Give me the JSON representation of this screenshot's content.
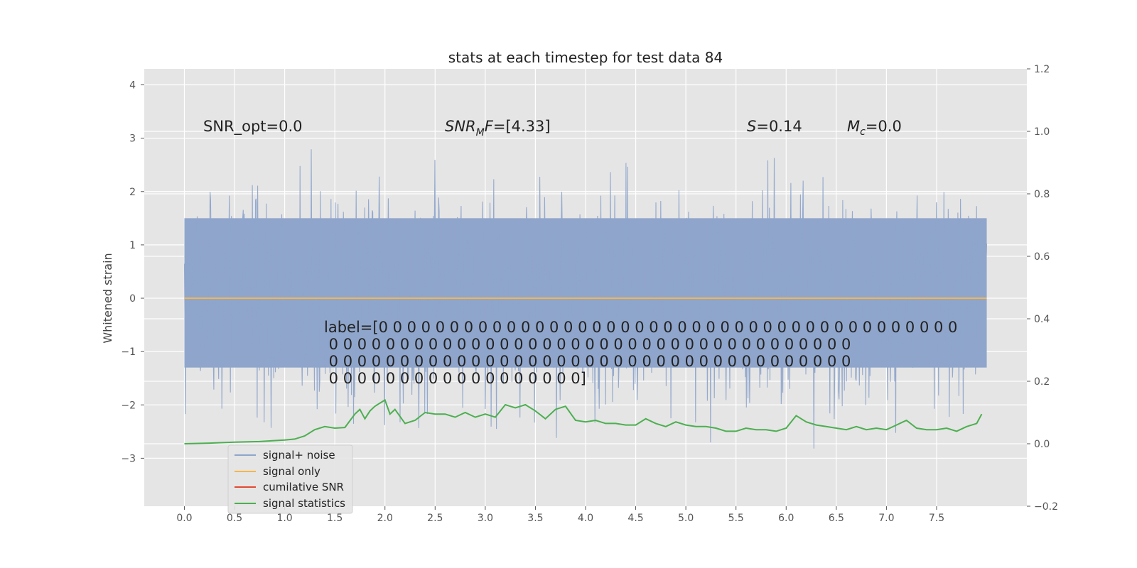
{
  "chart_data": {
    "type": "line",
    "title": "stats at each timestep for test data 84",
    "ylabel": "Whitened strain",
    "xlabel": "",
    "xlim": [
      -0.4,
      8.4
    ],
    "ylim": [
      -3.9,
      4.3
    ],
    "y2lim": [
      -0.2,
      1.2
    ],
    "x_ticks": [
      "0.0",
      "0.5",
      "1.0",
      "1.5",
      "2.0",
      "2.5",
      "3.0",
      "3.5",
      "4.0",
      "4.5",
      "5.0",
      "5.5",
      "6.0",
      "6.5",
      "7.0",
      "7.5"
    ],
    "y_ticks": [
      "4",
      "3",
      "2",
      "1",
      "0",
      "−1",
      "−2",
      "−3"
    ],
    "y2_ticks": [
      "1.2",
      "1.0",
      "0.8",
      "0.6",
      "0.4",
      "0.2",
      "0.0",
      "−0.2"
    ],
    "grid": true,
    "legend_placement": "lower-left",
    "series": [
      {
        "name": "signal+ noise",
        "color": "#8fa5cb",
        "axis": "left",
        "description_values": "dense noise between roughly -3.5 and 4.0 over x 0.0 to 8.0",
        "x_range": [
          0.0,
          8.0
        ],
        "envelope_upper": 3.4,
        "envelope_lower": -3.2,
        "core_band": [
          -1.3,
          1.5
        ]
      },
      {
        "name": "signal only",
        "color": "#f5b54a",
        "axis": "left",
        "x": [
          0.0,
          8.0
        ],
        "values": [
          0.0,
          0.0
        ]
      },
      {
        "name": "cumilative SNR",
        "color": "#e24a33",
        "axis": "right",
        "x": [],
        "values": []
      },
      {
        "name": "signal statistics",
        "color": "#4caf50",
        "axis": "right",
        "x": [
          0.0,
          0.25,
          0.5,
          0.75,
          1.0,
          1.1,
          1.2,
          1.3,
          1.4,
          1.5,
          1.6,
          1.7,
          1.75,
          1.8,
          1.85,
          1.9,
          2.0,
          2.05,
          2.1,
          2.2,
          2.3,
          2.4,
          2.5,
          2.6,
          2.7,
          2.8,
          2.9,
          3.0,
          3.1,
          3.2,
          3.3,
          3.4,
          3.5,
          3.6,
          3.7,
          3.8,
          3.9,
          4.0,
          4.1,
          4.2,
          4.3,
          4.4,
          4.5,
          4.6,
          4.7,
          4.8,
          4.9,
          5.0,
          5.1,
          5.2,
          5.3,
          5.4,
          5.5,
          5.6,
          5.7,
          5.8,
          5.9,
          6.0,
          6.1,
          6.2,
          6.3,
          6.4,
          6.5,
          6.6,
          6.7,
          6.8,
          6.9,
          7.0,
          7.1,
          7.2,
          7.3,
          7.4,
          7.5,
          7.6,
          7.7,
          7.8,
          7.9,
          7.95
        ],
        "values": [
          0.0,
          0.002,
          0.005,
          0.007,
          0.012,
          0.015,
          0.025,
          0.045,
          0.055,
          0.05,
          0.052,
          0.095,
          0.11,
          0.08,
          0.105,
          0.12,
          0.14,
          0.095,
          0.11,
          0.065,
          0.075,
          0.1,
          0.095,
          0.095,
          0.085,
          0.1,
          0.085,
          0.095,
          0.085,
          0.125,
          0.115,
          0.125,
          0.105,
          0.08,
          0.11,
          0.12,
          0.075,
          0.07,
          0.075,
          0.065,
          0.065,
          0.06,
          0.06,
          0.08,
          0.065,
          0.055,
          0.07,
          0.06,
          0.055,
          0.055,
          0.05,
          0.04,
          0.04,
          0.05,
          0.045,
          0.045,
          0.04,
          0.05,
          0.09,
          0.07,
          0.06,
          0.055,
          0.05,
          0.045,
          0.055,
          0.045,
          0.05,
          0.045,
          0.06,
          0.075,
          0.05,
          0.045,
          0.045,
          0.05,
          0.04,
          0.055,
          0.065,
          0.095
        ]
      }
    ],
    "annotations": {
      "snr_opt": "SNR_opt=0.0",
      "snr_mf": "[4.33]",
      "s_val": "=0.14",
      "mc_val": "=0.0",
      "label_line1": "label=[0 0 0 0 0 0 0 0 0 0 0 0 0 0 0 0 0 0 0 0 0 0 0 0 0 0 0 0 0 0 0 0 0 0 0 0 0 0 0 0 0",
      "label_line2": " 0 0 0 0 0 0 0 0 0 0 0 0 0 0 0 0 0 0 0 0 0 0 0 0 0 0 0 0 0 0 0 0 0 0 0 0 0",
      "label_line3": " 0 0 0 0 0 0 0 0 0 0 0 0 0 0 0 0 0 0 0 0 0 0 0 0 0 0 0 0 0 0 0 0 0 0 0 0 0",
      "label_line4": " 0 0 0 0 0 0 0 0 0 0 0 0 0 0 0 0 0 0]"
    }
  }
}
